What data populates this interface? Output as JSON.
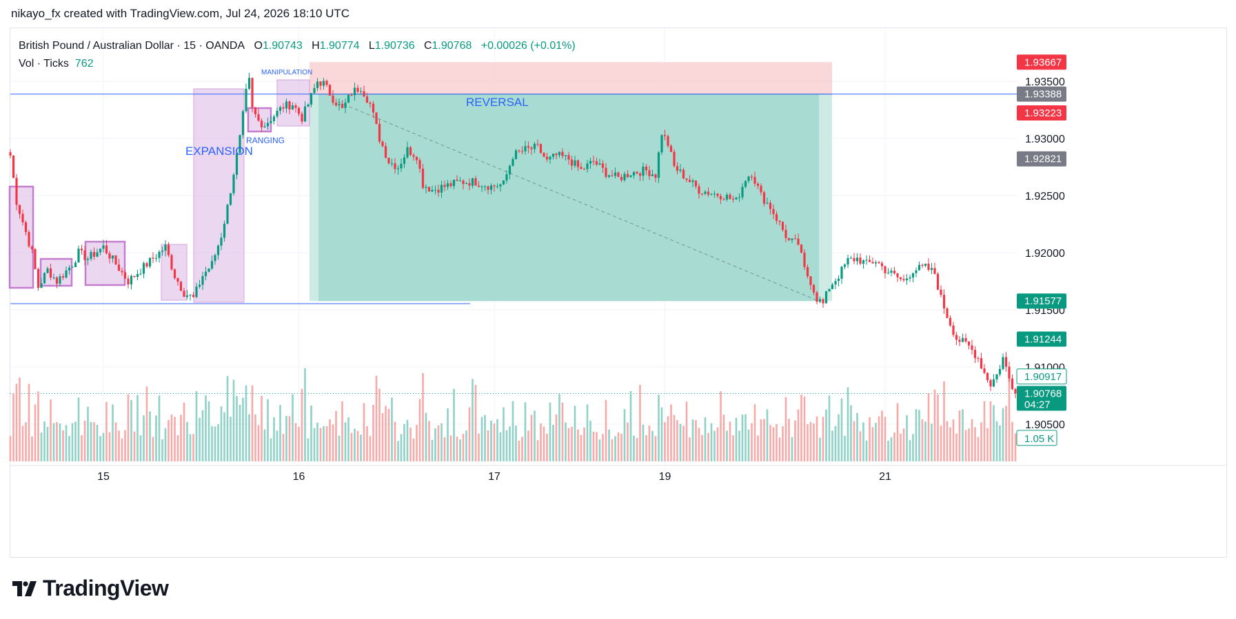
{
  "header": {
    "attribution": "nikayo_fx created with TradingView.com, Jul 24, 2026 18:10 UTC"
  },
  "legend": {
    "symbol": "British Pound / Australian Dollar · 15 · OANDA",
    "o_label": "O",
    "o_value": "1.90743",
    "h_label": "H",
    "h_value": "1.90774",
    "l_label": "L",
    "l_value": "1.90736",
    "c_label": "C",
    "c_value": "1.90768",
    "change": "+0.00026 (+0.01%)",
    "vol_label": "Vol · Ticks",
    "vol_value": "762"
  },
  "footer": {
    "brand": "TradingView"
  },
  "colors": {
    "up": "#089981",
    "down": "#f23645",
    "up_vol": "#8ed1c6",
    "down_vol": "#f7a9a7",
    "zone_purple": "#e1bee7",
    "zone_border": "#9c27b0",
    "target_zone": "#a8dbd1",
    "stop_zone": "#f8c9cc",
    "hline": "#2962ff",
    "annotation": "#2962ff"
  },
  "annotations": {
    "expansion": "EXPANSION",
    "ranging": "RANGING",
    "manipulation": "MANIPULATION",
    "reversal": "REVERSAL"
  },
  "chart_data": {
    "type": "candlestick",
    "symbol": "GBPAUD",
    "timeframe": "15",
    "ylim": [
      1.9025,
      1.9385
    ],
    "y_ticks": [
      {
        "value": 1.935,
        "label": "1.93500"
      },
      {
        "value": 1.93,
        "label": "1.93000"
      },
      {
        "value": 1.925,
        "label": "1.92500"
      },
      {
        "value": 1.92,
        "label": "1.92000"
      },
      {
        "value": 1.915,
        "label": "1.91500"
      },
      {
        "value": 1.91,
        "label": "1.91000"
      },
      {
        "value": 1.905,
        "label": "1.90500"
      }
    ],
    "x_ticks": [
      {
        "index": 30,
        "label": "15"
      },
      {
        "index": 93,
        "label": "16"
      },
      {
        "index": 156,
        "label": "17"
      },
      {
        "index": 211,
        "label": "19"
      },
      {
        "index": 282,
        "label": "21"
      }
    ],
    "price_labels": [
      {
        "value": 1.93667,
        "label": "1.93667",
        "style": "red"
      },
      {
        "value": 1.93388,
        "label": "1.93388",
        "style": "gray"
      },
      {
        "value": 1.93223,
        "label": "1.93223",
        "style": "red"
      },
      {
        "value": 1.92821,
        "label": "1.92821",
        "style": "gray"
      },
      {
        "value": 1.91577,
        "label": "1.91577",
        "style": "green"
      },
      {
        "value": 1.91244,
        "label": "1.91244",
        "style": "green"
      },
      {
        "value": 1.90917,
        "label": "1.90917",
        "style": "outline"
      },
      {
        "value": 1.90768,
        "label": "1.90768",
        "style": "green",
        "sub": "04:27"
      }
    ],
    "volume_label": "1.05 K",
    "last_price": 1.90768,
    "horizontal_lines": [
      1.93388,
      1.91537
    ],
    "position": {
      "entry": 1.93388,
      "stop": 1.93667,
      "target": 1.91577
    },
    "anchors": [
      [
        0,
        1.9285
      ],
      [
        2,
        1.9245
      ],
      [
        7,
        1.92
      ],
      [
        9,
        1.917
      ],
      [
        12,
        1.9185
      ],
      [
        15,
        1.9175
      ],
      [
        20,
        1.919
      ],
      [
        22,
        1.92
      ],
      [
        25,
        1.9195
      ],
      [
        30,
        1.9205
      ],
      [
        34,
        1.919
      ],
      [
        38,
        1.9175
      ],
      [
        42,
        1.9185
      ],
      [
        46,
        1.9195
      ],
      [
        50,
        1.9205
      ],
      [
        53,
        1.918
      ],
      [
        56,
        1.9165
      ],
      [
        59,
        1.916
      ],
      [
        62,
        1.918
      ],
      [
        65,
        1.919
      ],
      [
        68,
        1.9215
      ],
      [
        70,
        1.924
      ],
      [
        72,
        1.927
      ],
      [
        74,
        1.93
      ],
      [
        76,
        1.934
      ],
      [
        77,
        1.935
      ],
      [
        78,
        1.9325
      ],
      [
        80,
        1.9315
      ],
      [
        82,
        1.9312
      ],
      [
        85,
        1.932
      ],
      [
        88,
        1.9328
      ],
      [
        91,
        1.933
      ],
      [
        94,
        1.9318
      ],
      [
        96,
        1.933
      ],
      [
        99,
        1.935
      ],
      [
        101,
        1.9348
      ],
      [
        104,
        1.9335
      ],
      [
        107,
        1.9325
      ],
      [
        110,
        1.934
      ],
      [
        113,
        1.9345
      ],
      [
        116,
        1.933
      ],
      [
        119,
        1.93
      ],
      [
        122,
        1.928
      ],
      [
        125,
        1.9275
      ],
      [
        128,
        1.929
      ],
      [
        131,
        1.9285
      ],
      [
        133,
        1.926
      ],
      [
        136,
        1.9255
      ],
      [
        140,
        1.9258
      ],
      [
        145,
        1.9262
      ],
      [
        150,
        1.9262
      ],
      [
        155,
        1.9258
      ],
      [
        159,
        1.926
      ],
      [
        162,
        1.9285
      ],
      [
        166,
        1.929
      ],
      [
        170,
        1.9292
      ],
      [
        173,
        1.928
      ],
      [
        176,
        1.9285
      ],
      [
        180,
        1.9282
      ],
      [
        184,
        1.9272
      ],
      [
        188,
        1.928
      ],
      [
        192,
        1.927
      ],
      [
        196,
        1.9265
      ],
      [
        200,
        1.927
      ],
      [
        205,
        1.9272
      ],
      [
        208,
        1.9268
      ],
      [
        210,
        1.9305
      ],
      [
        212,
        1.9295
      ],
      [
        214,
        1.9275
      ],
      [
        218,
        1.9265
      ],
      [
        222,
        1.9255
      ],
      [
        226,
        1.9252
      ],
      [
        230,
        1.925
      ],
      [
        234,
        1.9245
      ],
      [
        237,
        1.9265
      ],
      [
        239,
        1.927
      ],
      [
        242,
        1.925
      ],
      [
        245,
        1.924
      ],
      [
        248,
        1.9225
      ],
      [
        251,
        1.921
      ],
      [
        254,
        1.9208
      ],
      [
        256,
        1.9185
      ],
      [
        258,
        1.9175
      ],
      [
        260,
        1.916
      ],
      [
        262,
        1.9155
      ],
      [
        264,
        1.917
      ],
      [
        267,
        1.918
      ],
      [
        270,
        1.9193
      ],
      [
        273,
        1.9195
      ],
      [
        276,
        1.919
      ],
      [
        279,
        1.9193
      ],
      [
        282,
        1.9185
      ],
      [
        285,
        1.918
      ],
      [
        288,
        1.9175
      ],
      [
        291,
        1.9185
      ],
      [
        295,
        1.9187
      ],
      [
        298,
        1.9182
      ],
      [
        300,
        1.916
      ],
      [
        302,
        1.9145
      ],
      [
        305,
        1.9125
      ],
      [
        309,
        1.9118
      ],
      [
        312,
        1.9108
      ],
      [
        314,
        1.9095
      ],
      [
        316,
        1.9085
      ],
      [
        318,
        1.9093
      ],
      [
        320,
        1.9108
      ],
      [
        322,
        1.909
      ],
      [
        324,
        1.9078
      ]
    ],
    "n_bars": 325
  }
}
